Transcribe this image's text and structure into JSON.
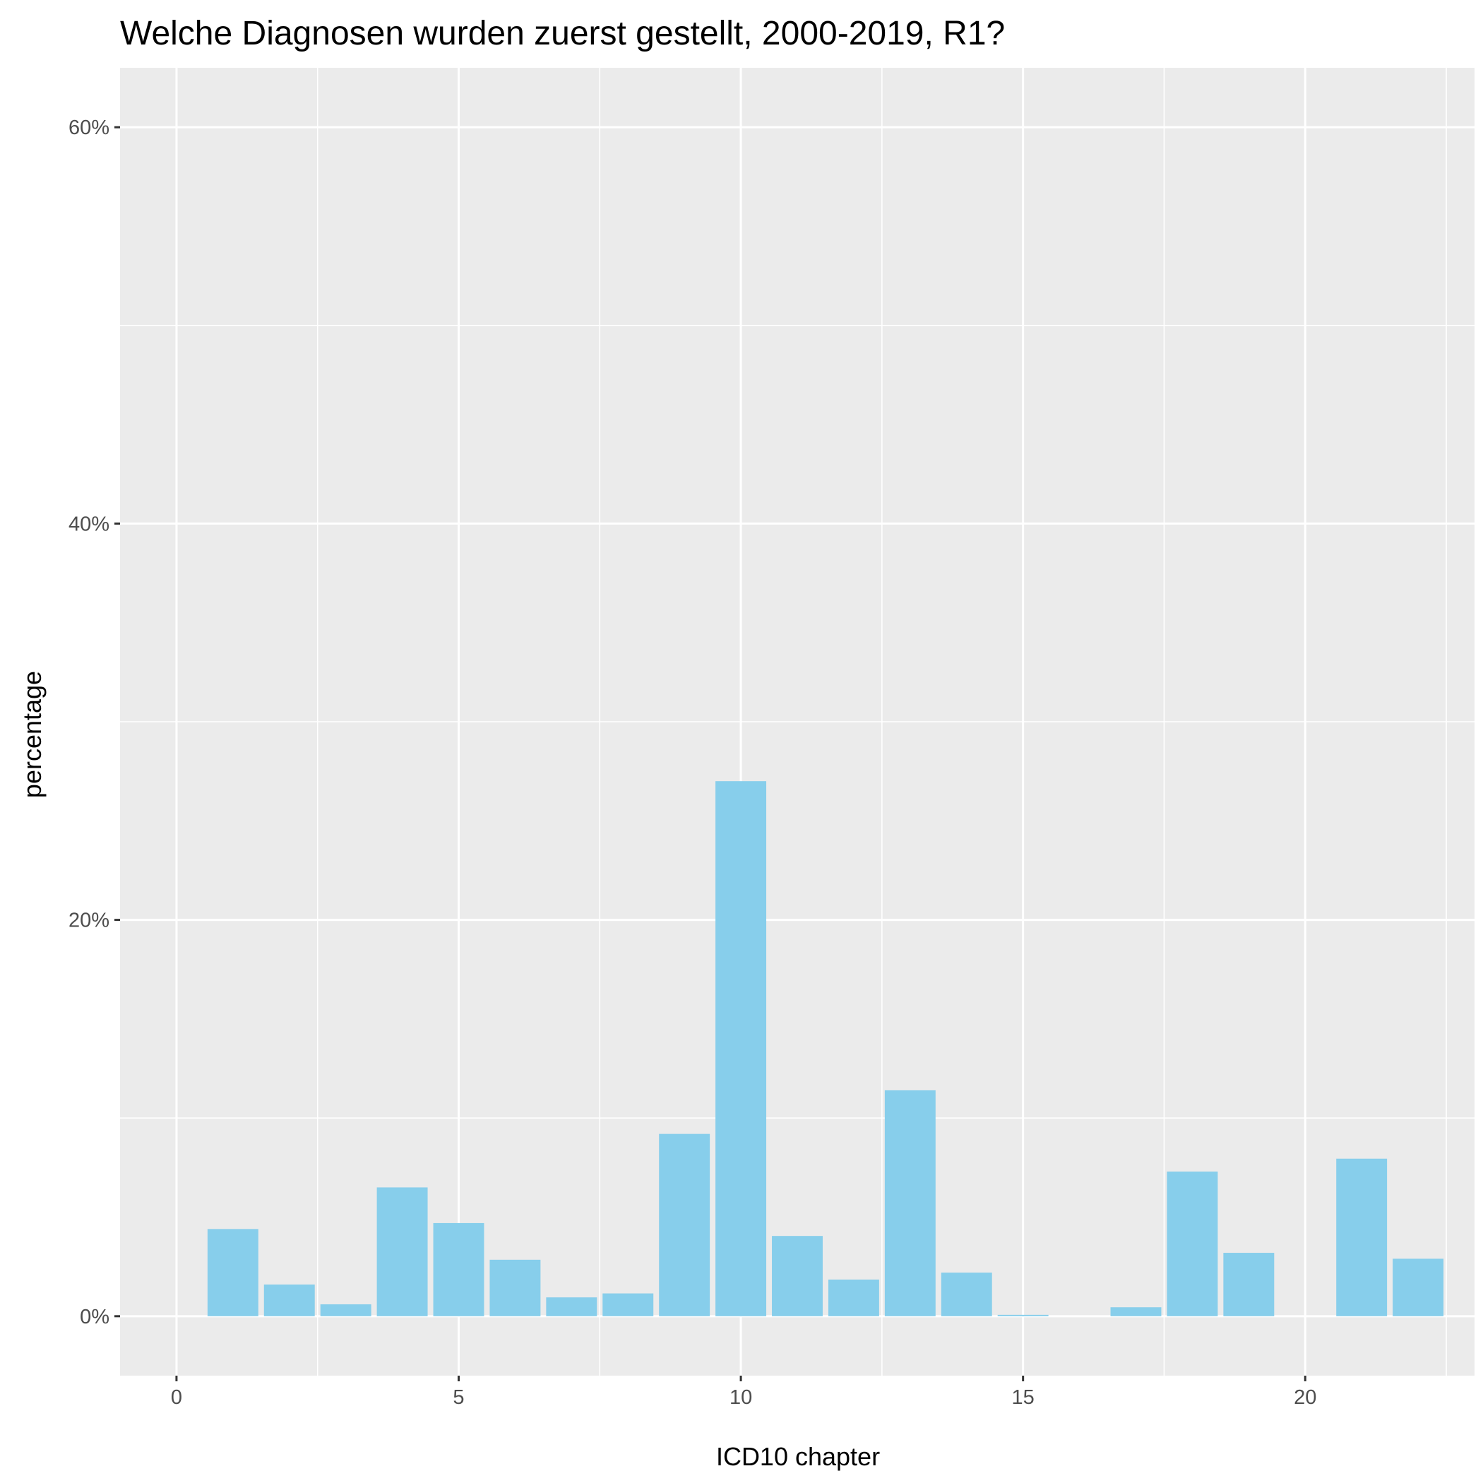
{
  "chart_data": {
    "type": "bar",
    "title": "Welche Diagnosen wurden zuerst gestellt, 2000-2019, R1?",
    "xlabel": "ICD10 chapter",
    "ylabel": "percentage",
    "xlim": [
      -1,
      23
    ],
    "ylim": [
      -3,
      63
    ],
    "x_ticks": [
      0,
      5,
      10,
      15,
      20
    ],
    "x_tick_labels": [
      "0",
      "5",
      "10",
      "15",
      "20"
    ],
    "y_ticks": [
      0,
      20,
      40,
      60
    ],
    "y_tick_labels": [
      "0%",
      "20%",
      "40%",
      "60%"
    ],
    "x": [
      1,
      2,
      3,
      4,
      5,
      6,
      7,
      8,
      9,
      10,
      11,
      12,
      13,
      14,
      15,
      16,
      17,
      18,
      19,
      20,
      21,
      22
    ],
    "values": [
      4.4,
      1.6,
      0.6,
      6.5,
      4.7,
      2.85,
      0.95,
      1.15,
      9.2,
      27.0,
      4.05,
      1.85,
      11.4,
      2.2,
      0.07,
      0.0,
      0.45,
      7.3,
      3.2,
      0.0,
      7.95,
      2.9
    ],
    "bar_color": "#87CEEB",
    "panel_color": "#EBEBEB",
    "grid": true,
    "legend": "none"
  }
}
